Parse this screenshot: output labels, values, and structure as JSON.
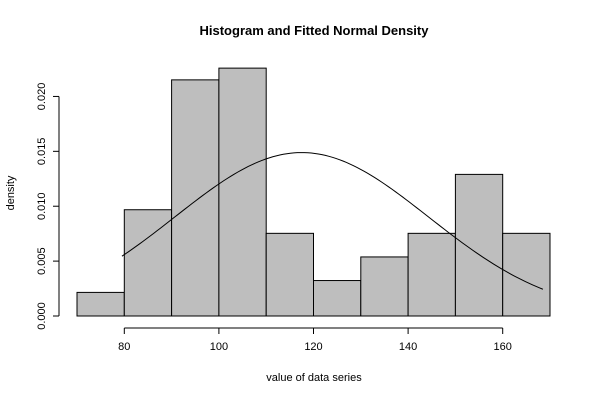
{
  "chart_data": {
    "type": "bar",
    "title": "Histogram and Fitted Normal Density",
    "xlabel": "value of data series",
    "ylabel": "density",
    "bin_edges": [
      70,
      80,
      90,
      100,
      110,
      120,
      130,
      140,
      150,
      160,
      170
    ],
    "values": [
      0.00215,
      0.00968,
      0.02151,
      0.02258,
      0.00753,
      0.00323,
      0.00538,
      0.00753,
      0.0129,
      0.00753
    ],
    "xlim": [
      70,
      170
    ],
    "ylim": [
      0,
      0.0225
    ],
    "x_ticks": [
      80,
      100,
      120,
      140,
      160
    ],
    "y_ticks": [
      0.0,
      0.005,
      0.01,
      0.015,
      0.02
    ],
    "y_tick_labels": [
      "0.000",
      "0.005",
      "0.010",
      "0.015",
      "0.020"
    ],
    "normal_fit": {
      "mean": 117.5,
      "sd": 26.8,
      "x_range": [
        79.5,
        168.5
      ]
    },
    "bar_color": "#bebebe",
    "line_color": "#000000",
    "grid": false
  }
}
